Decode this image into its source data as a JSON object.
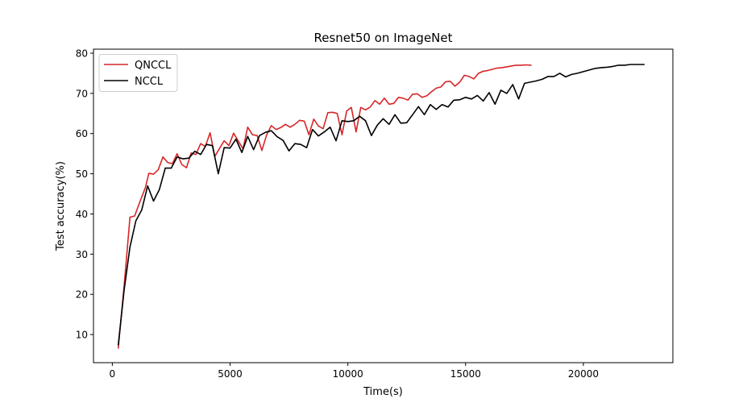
{
  "chart_data": {
    "type": "line",
    "title": "Resnet50 on ImageNet",
    "xlabel": "Time(s)",
    "ylabel": "Test accuracy(%)",
    "xlim": [
      -800,
      23800
    ],
    "ylim": [
      3,
      81
    ],
    "xticks": [
      0,
      5000,
      10000,
      15000,
      20000
    ],
    "yticks": [
      10,
      20,
      30,
      40,
      50,
      60,
      70,
      80
    ],
    "grid": false,
    "legend_position": "top-left",
    "series": [
      {
        "name": "QNCCL",
        "color": "#d62728",
        "x": [
          250,
          500,
          750,
          950,
          1200,
          1400,
          1550,
          1750,
          1950,
          2150,
          2350,
          2550,
          2750,
          2950,
          3150,
          3350,
          3550,
          3750,
          3950,
          4150,
          4350,
          4550,
          4750,
          4950,
          5150,
          5350,
          5550,
          5750,
          5950,
          6150,
          6350,
          6550,
          6750,
          6950,
          7150,
          7350,
          7550,
          7750,
          7950,
          8150,
          8350,
          8550,
          8750,
          8950,
          9150,
          9350,
          9550,
          9750,
          9950,
          10150,
          10350,
          10550,
          10750,
          10950,
          11150,
          11350,
          11550,
          11750,
          11950,
          12150,
          12350,
          12550,
          12750,
          12950,
          13150,
          13350,
          13550,
          13750,
          13950,
          14150,
          14350,
          14550,
          14750,
          14950,
          15150,
          15350,
          15550,
          15750,
          15950,
          16150,
          16350,
          16550,
          16750,
          16950,
          17150,
          17350,
          17550,
          17800
        ],
        "values": [
          6.5,
          22,
          39.2,
          39.5,
          43.5,
          46.5,
          50.1,
          49.9,
          51,
          54.2,
          52.8,
          52.5,
          55,
          52.3,
          51.5,
          55.2,
          54.8,
          57.5,
          56.8,
          60.2,
          54.3,
          56.3,
          58.2,
          57,
          60.1,
          58.1,
          56.2,
          61.6,
          59.7,
          59.5,
          55.8,
          59.6,
          62,
          61,
          61.5,
          62.3,
          61.6,
          62.3,
          63.3,
          63.1,
          59.7,
          63.6,
          61.9,
          61.2,
          65.2,
          65.3,
          65,
          59.7,
          65.6,
          66.5,
          60.4,
          66.5,
          65.9,
          66.6,
          68.2,
          67.3,
          68.8,
          67.3,
          67.5,
          69,
          68.8,
          68.3,
          69.8,
          69.9,
          69,
          69.4,
          70.4,
          71.3,
          71.6,
          72.9,
          73,
          71.8,
          72.8,
          74.5,
          74.2,
          73.6,
          75,
          75.5,
          75.7,
          76,
          76.3,
          76.4,
          76.6,
          76.8,
          77,
          77,
          77.1,
          77
        ]
      },
      {
        "name": "NCCL",
        "color": "#000000",
        "x": [
          250,
          500,
          750,
          1000,
          1250,
          1500,
          1750,
          2000,
          2250,
          2500,
          2750,
          3000,
          3250,
          3500,
          3750,
          4000,
          4250,
          4500,
          4750,
          5000,
          5250,
          5500,
          5750,
          6000,
          6250,
          6500,
          6750,
          7000,
          7250,
          7500,
          7750,
          8000,
          8250,
          8500,
          8750,
          9000,
          9250,
          9500,
          9750,
          10000,
          10250,
          10500,
          10750,
          11000,
          11250,
          11500,
          11750,
          12000,
          12250,
          12500,
          12750,
          13000,
          13250,
          13500,
          13750,
          14000,
          14250,
          14500,
          14750,
          15000,
          15250,
          15500,
          15750,
          16000,
          16250,
          16500,
          16750,
          17000,
          17250,
          17500,
          17750,
          18000,
          18250,
          18500,
          18750,
          19000,
          19250,
          19500,
          19750,
          20000,
          20250,
          20500,
          20750,
          21000,
          21250,
          21500,
          21750,
          22000,
          22250,
          22600
        ],
        "values": [
          7.3,
          21,
          31.8,
          38.3,
          41,
          47,
          43.2,
          46.1,
          51.4,
          51.4,
          54.2,
          53.7,
          53.9,
          55.6,
          54.8,
          57.3,
          57,
          50,
          56.5,
          56.4,
          58.6,
          55.3,
          59.3,
          56,
          59.5,
          60.3,
          60.7,
          59.2,
          58.3,
          55.7,
          57.5,
          57.3,
          56.5,
          61,
          59.4,
          60.4,
          61.6,
          58.2,
          63.2,
          63,
          63.2,
          64.3,
          63.2,
          59.5,
          62.1,
          63.7,
          62.3,
          64.7,
          62.6,
          62.7,
          64.7,
          66.7,
          64.7,
          67.2,
          66,
          67.2,
          66.6,
          68.3,
          68.4,
          69,
          68.6,
          69.5,
          68.1,
          70.2,
          67.3,
          70.8,
          70,
          72.2,
          68.6,
          72.5,
          72.8,
          73.1,
          73.5,
          74.2,
          74.2,
          75,
          74.1,
          74.7,
          75,
          75.4,
          75.8,
          76.2,
          76.4,
          76.5,
          76.7,
          77,
          77,
          77.2,
          77.2,
          77.2
        ]
      }
    ]
  }
}
